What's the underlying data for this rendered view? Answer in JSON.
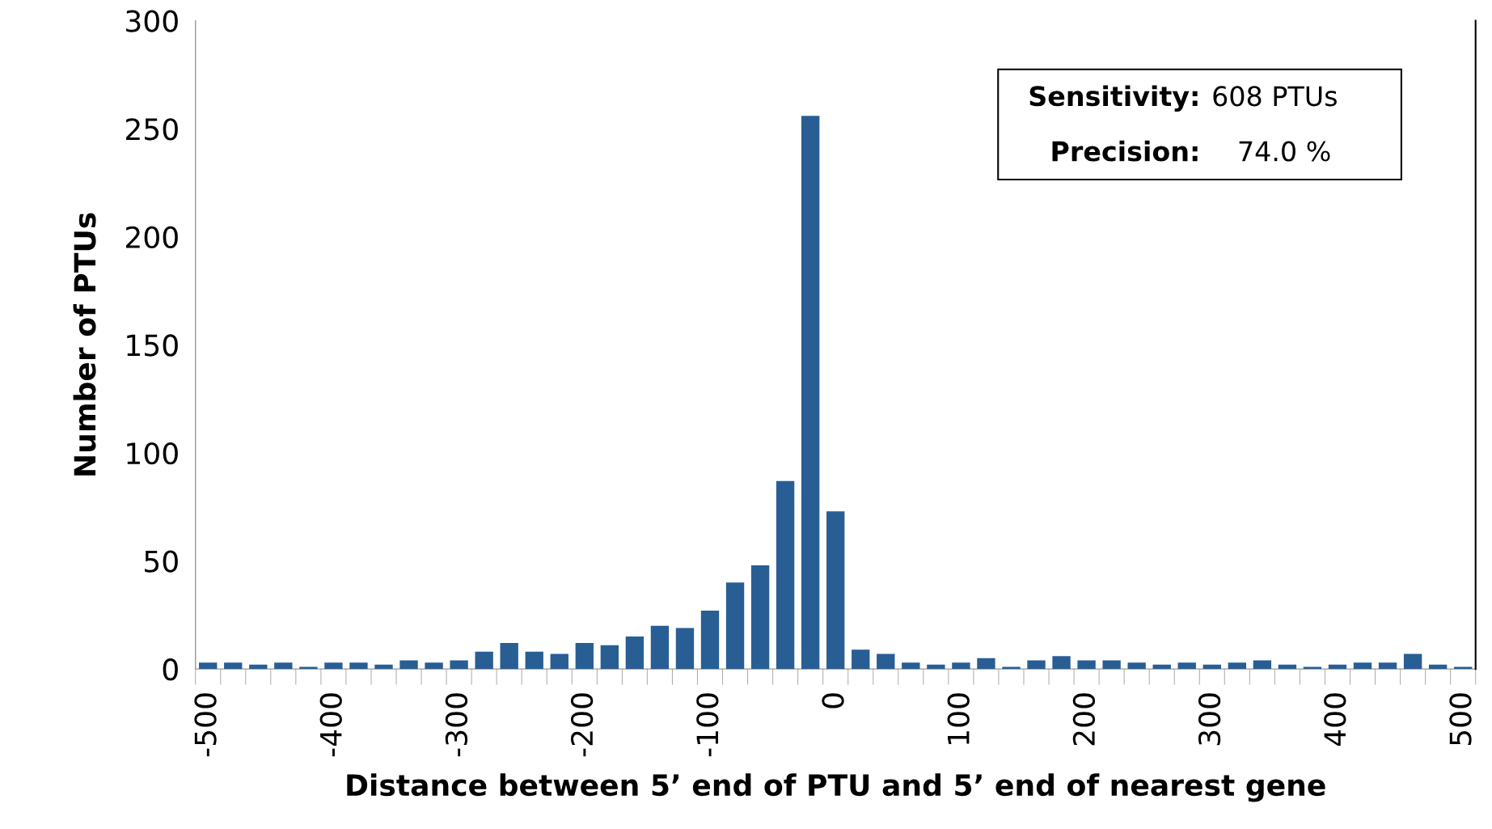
{
  "chart_data": {
    "type": "bar",
    "xlabel": "Distance between 5’ end of PTU and 5’ end of nearest gene",
    "ylabel": "Number of PTUs",
    "categories": [
      "-500",
      null,
      null,
      null,
      null,
      "-400",
      null,
      null,
      null,
      null,
      "-300",
      null,
      null,
      null,
      null,
      "-200",
      null,
      null,
      null,
      null,
      "-100",
      null,
      null,
      null,
      null,
      "0",
      null,
      null,
      null,
      null,
      "100",
      null,
      null,
      null,
      null,
      "200",
      null,
      null,
      null,
      null,
      "300",
      null,
      null,
      null,
      null,
      "400",
      null,
      null,
      null,
      null,
      "500"
    ],
    "values": [
      3,
      3,
      2,
      3,
      1,
      3,
      3,
      2,
      4,
      3,
      4,
      8,
      12,
      8,
      7,
      12,
      11,
      15,
      20,
      19,
      27,
      40,
      48,
      87,
      256,
      73,
      9,
      7,
      3,
      2,
      3,
      5,
      1,
      4,
      6,
      4,
      4,
      3,
      2,
      3,
      2,
      3,
      4,
      2,
      1,
      2,
      3,
      3,
      7,
      2,
      1
    ],
    "color": "#285e94",
    "ylim": [
      0,
      300
    ],
    "yticks": [
      0,
      50,
      100,
      150,
      200,
      250,
      300
    ],
    "grid": false,
    "annotations": [
      "Sensitivity: 608 PTUs",
      "Precision:    74.0 %"
    ]
  }
}
